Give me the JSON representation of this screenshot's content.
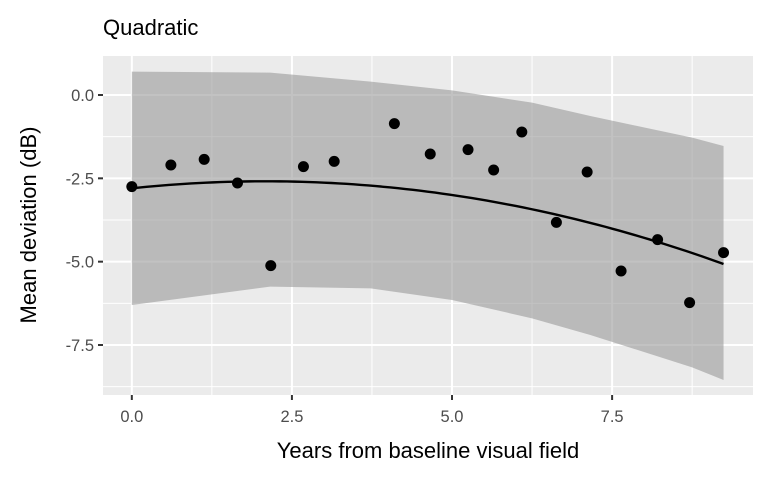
{
  "chart_data": {
    "type": "scatter",
    "title": "Quadratic",
    "xlabel": "Years from baseline visual field",
    "ylabel": "Mean deviation (dB)",
    "xlim": [
      -0.45,
      9.7
    ],
    "ylim": [
      -9.0,
      1.17
    ],
    "x_ticks": [
      0.0,
      2.5,
      5.0,
      7.5
    ],
    "x_tick_labels": [
      "0.0",
      "2.5",
      "5.0",
      "7.5"
    ],
    "y_ticks": [
      0.0,
      -2.5,
      -5.0,
      -7.5
    ],
    "y_tick_labels": [
      "0.0",
      "-2.5",
      "-5.0",
      "-7.5"
    ],
    "grid": true,
    "legend": "none",
    "points": {
      "x": [
        0.0,
        0.61,
        1.13,
        1.65,
        2.17,
        2.68,
        3.16,
        4.1,
        4.66,
        5.25,
        5.65,
        6.09,
        6.63,
        7.11,
        7.64,
        8.21,
        8.71,
        9.24
      ],
      "y": [
        -2.75,
        -2.1,
        -1.93,
        -2.64,
        -5.12,
        -2.15,
        -1.99,
        -0.86,
        -1.77,
        -1.64,
        -2.25,
        -1.11,
        -3.82,
        -2.31,
        -5.28,
        -4.34,
        -6.23,
        -4.73
      ]
    },
    "fit": {
      "type": "quadratic",
      "label": "Quadratic",
      "coefficients": {
        "intercept": -2.8,
        "linear": 0.2025,
        "quadratic": -0.0485
      },
      "x": [
        0.0,
        1.0,
        2.0,
        2.5,
        3.0,
        4.0,
        5.0,
        6.0,
        6.25,
        7.0,
        7.5,
        8.0,
        8.75,
        9.24
      ],
      "y": [
        -2.8,
        -2.65,
        -2.59,
        -2.6,
        -2.63,
        -2.77,
        -3.0,
        -3.33,
        -3.43,
        -3.76,
        -4.01,
        -4.28,
        -4.77,
        -5.07
      ]
    },
    "confidence_band": {
      "x": [
        0.0,
        2.16,
        3.73,
        5.0,
        6.25,
        7.16,
        8.75,
        9.24
      ],
      "upper": [
        0.7,
        0.67,
        0.4,
        0.14,
        -0.23,
        -0.63,
        -1.28,
        -1.53
      ],
      "lower": [
        -6.3,
        -5.75,
        -5.8,
        -6.15,
        -6.7,
        -7.2,
        -8.17,
        -8.55
      ]
    },
    "colors": {
      "panel_background": "#EBEBEB",
      "grid": "#FFFFFF",
      "band": "#ABABAB",
      "points": "#000000",
      "fit_line": "#000000"
    }
  }
}
